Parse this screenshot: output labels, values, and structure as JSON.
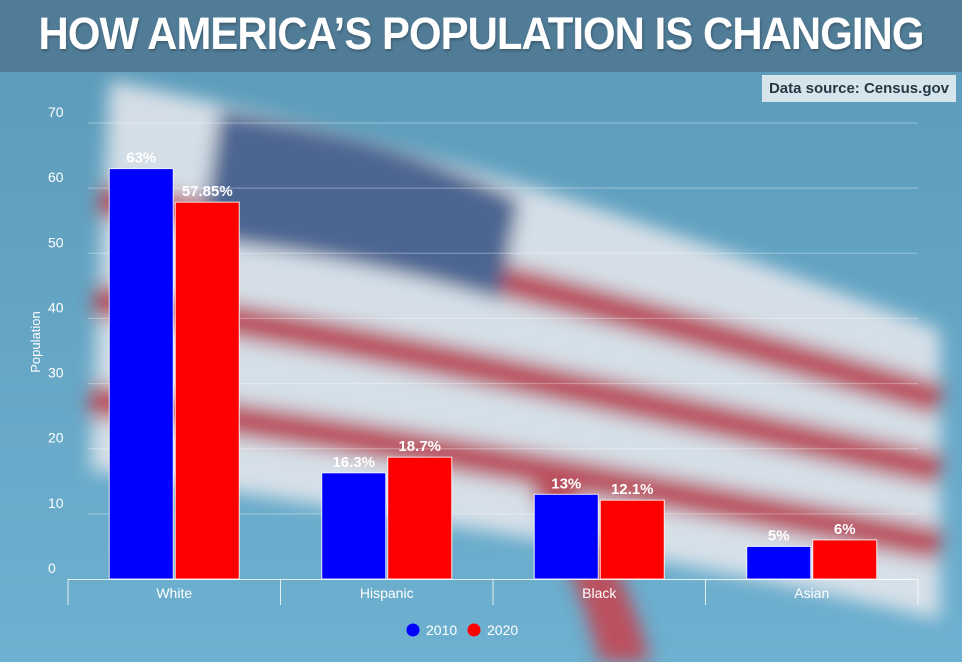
{
  "header": {
    "title": "HOW AMERICA’S POPULATION IS CHANGING",
    "source": "Data source: Census.gov"
  },
  "colors": {
    "series_2010": "#0000ff",
    "series_2020": "#ff0000",
    "header_bg": "#507a94",
    "background": "#66a7c6"
  },
  "chart_data": {
    "type": "bar",
    "title": "HOW AMERICA’S POPULATION IS CHANGING",
    "xlabel": "",
    "ylabel": "Population",
    "ylim": [
      0,
      70
    ],
    "yticks": [
      0,
      10,
      20,
      30,
      40,
      50,
      60,
      70
    ],
    "grid": true,
    "legend_position": "bottom",
    "categories": [
      "White",
      "Hispanic",
      "Black",
      "Asian"
    ],
    "series": [
      {
        "name": "2010",
        "color": "#0000ff",
        "values": [
          63,
          16.3,
          13,
          5
        ],
        "labels": [
          "63%",
          "16.3%",
          "13%",
          "5%"
        ]
      },
      {
        "name": "2020",
        "color": "#ff0000",
        "values": [
          57.85,
          18.7,
          12.1,
          6
        ],
        "labels": [
          "57.85%",
          "18.7%",
          "12.1%",
          "6%"
        ]
      }
    ]
  }
}
